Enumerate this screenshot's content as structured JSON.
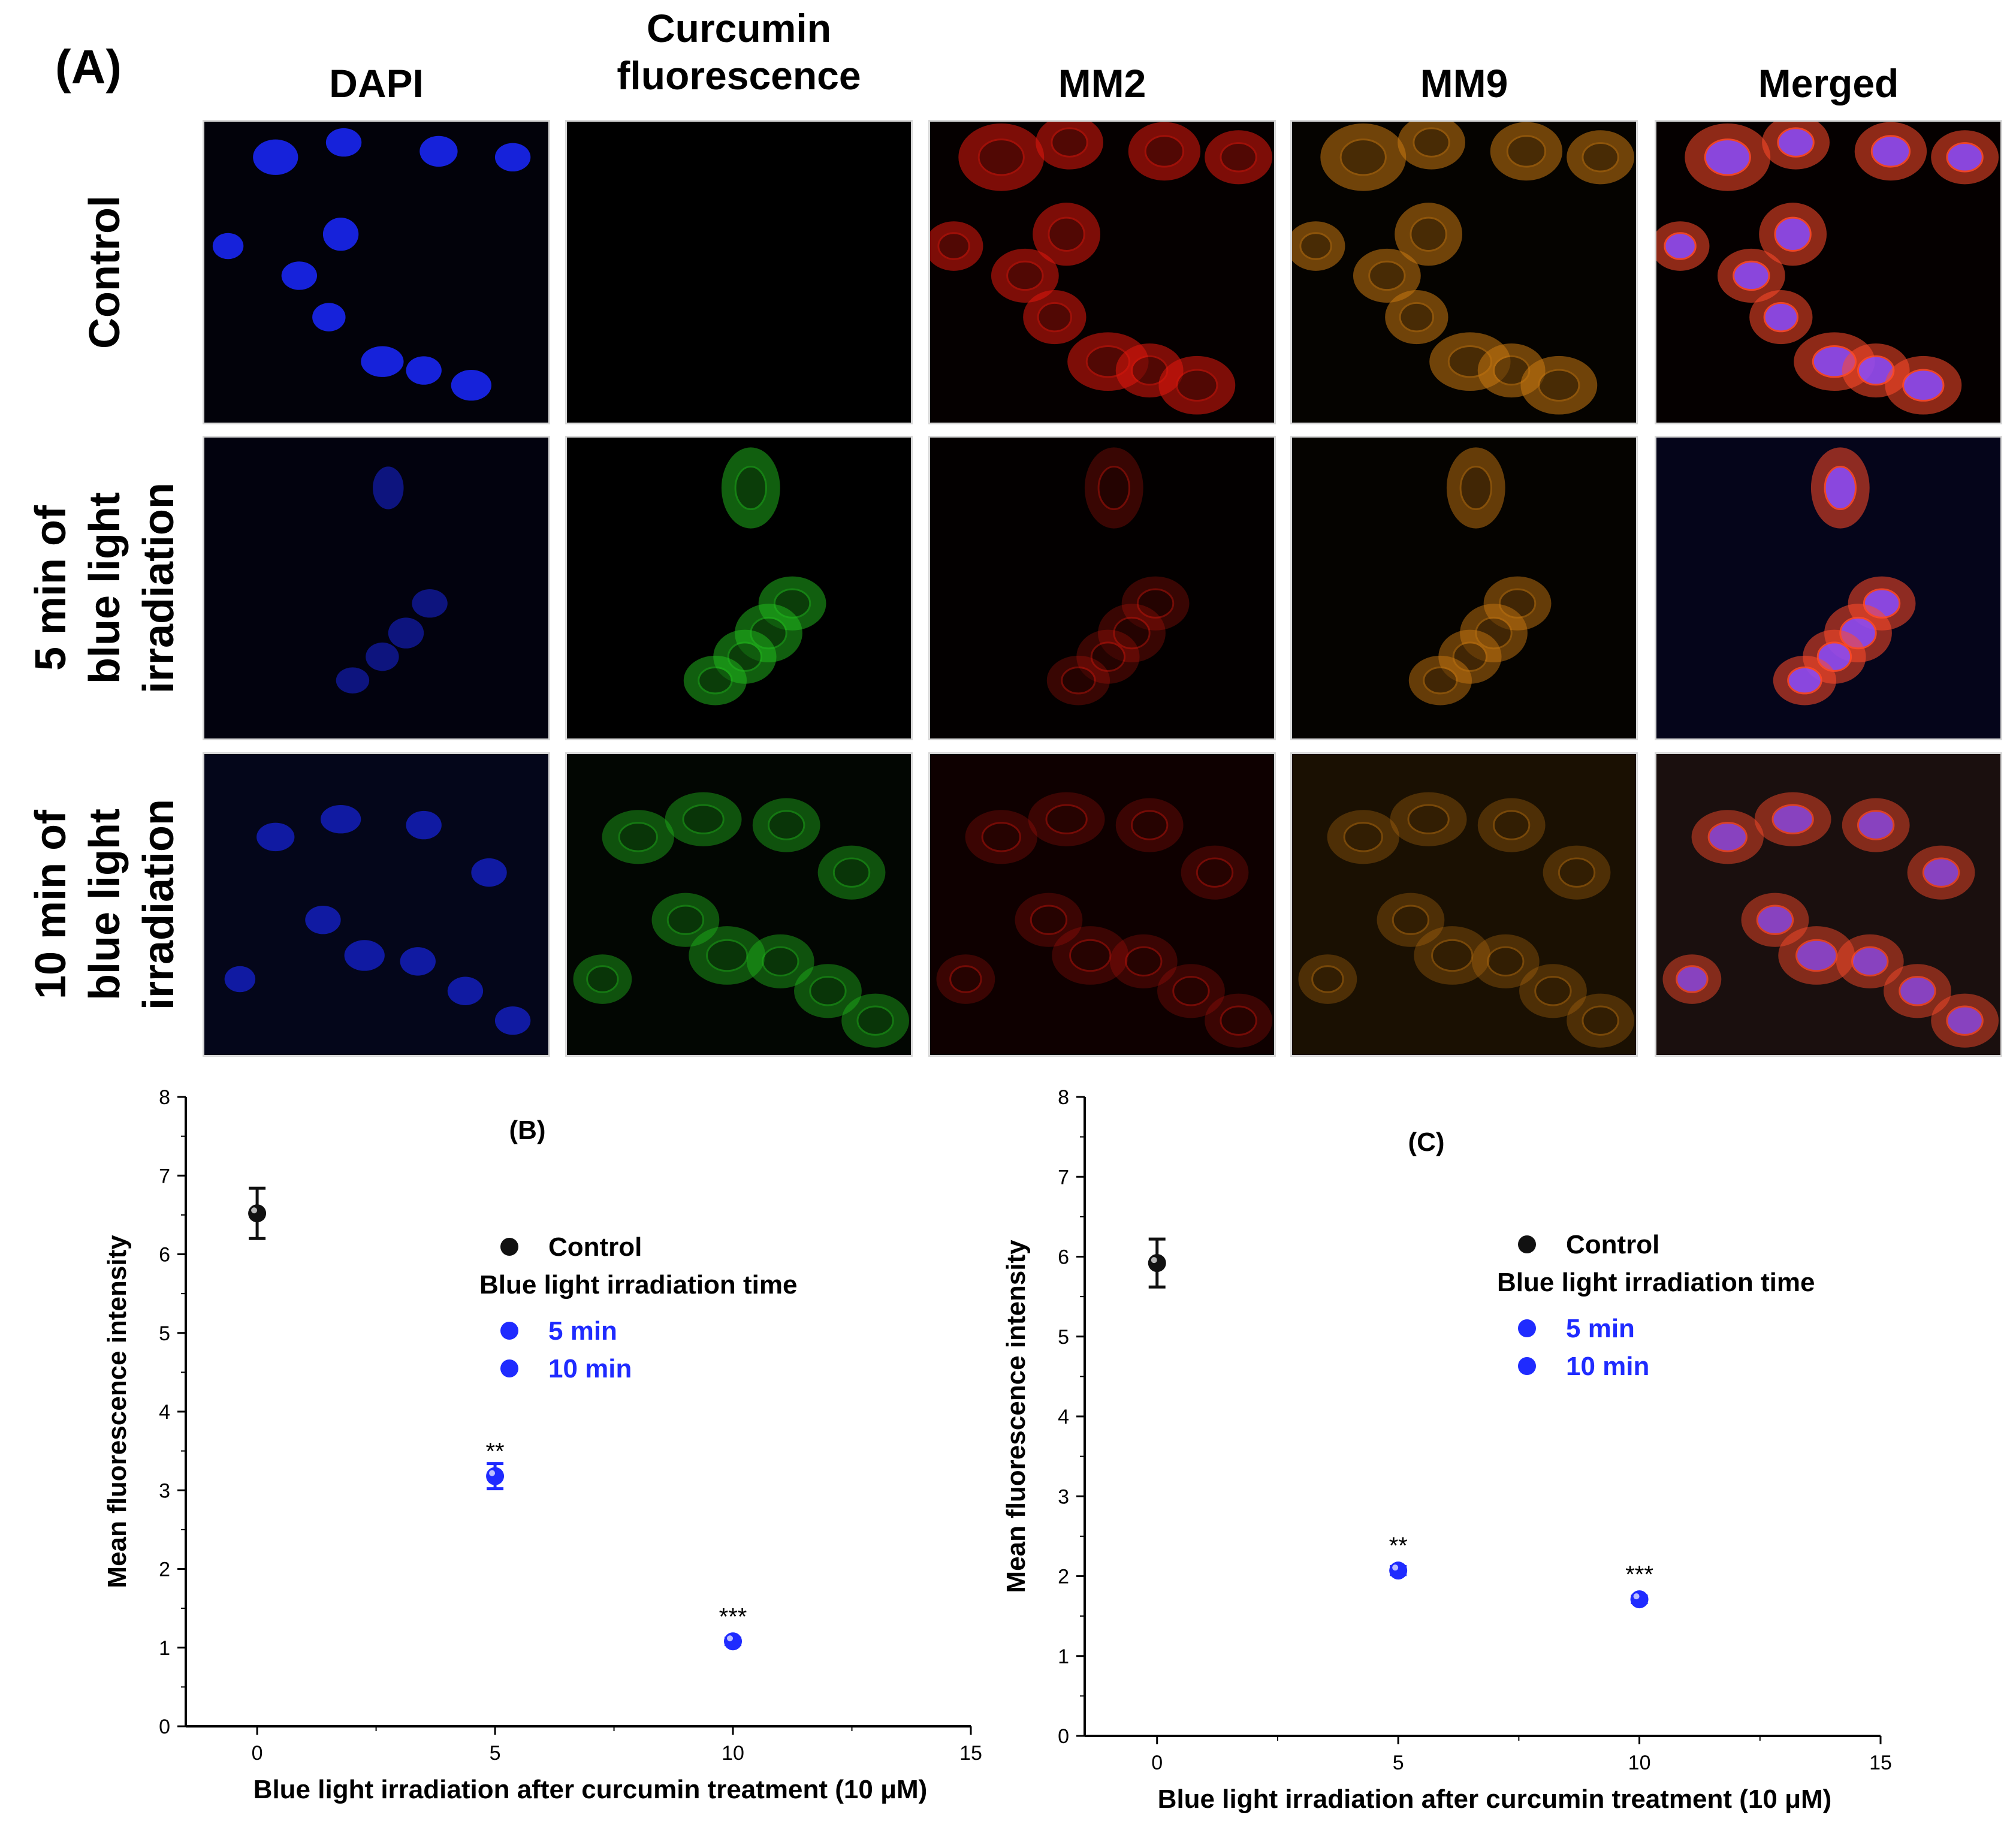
{
  "figure": {
    "panel_label_a": "(A)",
    "columns": [
      "DAPI",
      "Curcumin fluorescence",
      "MM2",
      "MM9",
      "Merged"
    ],
    "column_lines": [
      [
        "DAPI"
      ],
      [
        "Curcumin",
        "fluorescence"
      ],
      [
        "MM2"
      ],
      [
        "MM9"
      ],
      [
        "Merged"
      ]
    ],
    "rows": [
      {
        "lines": [
          "Control"
        ]
      },
      {
        "lines": [
          "5 min of",
          "blue light",
          "irradiation"
        ]
      },
      {
        "lines": [
          "10 min of",
          "blue light",
          "irradiation"
        ]
      }
    ],
    "channel_colors": {
      "DAPI": "#1a28ff",
      "Curcumin fluorescence": "#22c01e",
      "MM2": "#e0180c",
      "MM9": "#c87810",
      "Merged": "#ff4a2a"
    }
  },
  "chart_data": [
    {
      "type": "scatter",
      "panel_label": "(B)",
      "xlabel": "Blue light irradiation after curcumin treatment (10 μM)",
      "ylabel": "Mean fluorescence intensity",
      "xlim": [
        -1.5,
        15
      ],
      "ylim": [
        0,
        8
      ],
      "xticks": [
        0,
        5,
        10,
        15
      ],
      "yticks": [
        0,
        1,
        2,
        3,
        4,
        5,
        6,
        7,
        8
      ],
      "legend": {
        "control": "Control",
        "heading": "Blue light irradiation time",
        "items": [
          "5 min",
          "10 min"
        ]
      },
      "points": [
        {
          "x": 0,
          "y": 6.52,
          "err": 0.32,
          "color": "#111111"
        },
        {
          "x": 5,
          "y": 3.18,
          "err": 0.16,
          "color": "#1f2bff",
          "sig": "**"
        },
        {
          "x": 10,
          "y": 1.08,
          "err": 0.04,
          "color": "#1f2bff",
          "sig": "***"
        }
      ]
    },
    {
      "type": "scatter",
      "panel_label": "(C)",
      "xlabel": "Blue light irradiation after curcumin treatment (10 μM)",
      "ylabel": "Mean fluorescence intensity",
      "xlim": [
        -1.5,
        15
      ],
      "ylim": [
        0,
        8
      ],
      "xticks": [
        0,
        5,
        10,
        15
      ],
      "yticks": [
        0,
        1,
        2,
        3,
        4,
        5,
        6,
        7,
        8
      ],
      "legend": {
        "control": "Control",
        "heading": "Blue light irradiation time",
        "items": [
          "5 min",
          "10 min"
        ]
      },
      "points": [
        {
          "x": 0,
          "y": 5.92,
          "err": 0.3,
          "color": "#111111"
        },
        {
          "x": 5,
          "y": 2.07,
          "err": 0.05,
          "color": "#1f2bff",
          "sig": "**"
        },
        {
          "x": 10,
          "y": 1.71,
          "err": 0.04,
          "color": "#1f2bff",
          "sig": "***"
        }
      ]
    }
  ]
}
